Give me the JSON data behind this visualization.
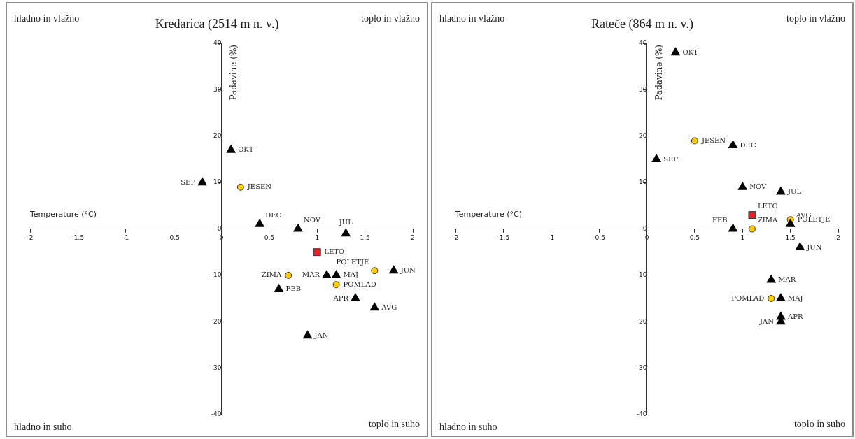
{
  "chart_data": [
    {
      "type": "scatter",
      "title": "Kredarica (2514 m n. v.)",
      "xlabel": "Temperature (°C)",
      "ylabel": "Padavine (%)",
      "grid": false,
      "legend": false,
      "xlim": [
        -2,
        2
      ],
      "xticks": [
        -2,
        {
          "value": -1.5,
          "label": "-1,5"
        },
        -1,
        {
          "value": -0.5,
          "label": "-0,5"
        },
        0,
        {
          "value": 0.5,
          "label": "0,5"
        },
        1,
        {
          "value": 1.5,
          "label": "1,5"
        },
        2
      ],
      "ylim": [
        -40,
        40
      ],
      "yticks": [
        -40,
        -30,
        -20,
        -10,
        0,
        10,
        20,
        30,
        40
      ],
      "series": [
        {
          "type": "scatter",
          "marker": "triangle",
          "color": "#000000",
          "x": [
            0.1,
            -0.2,
            0.4,
            0.8,
            1.3,
            1.1,
            1.2,
            1.8,
            0.6,
            1.4,
            1.6,
            0.9
          ],
          "values": [
            17,
            10,
            1,
            0,
            -1,
            -10,
            -10,
            -9,
            -13,
            -15,
            -17,
            -23
          ]
        },
        {
          "type": "scatter",
          "marker": "circle",
          "color": "#ffcc00",
          "x": [
            0.2,
            0.7,
            1.2,
            1.6
          ],
          "values": [
            9,
            -10,
            -12,
            -9
          ]
        },
        {
          "type": "scatter",
          "marker": "square",
          "color": "#e8202a",
          "x": [
            1
          ],
          "values": [
            -5
          ]
        }
      ],
      "annotations": [
        "hladno in vlažno",
        "toplo in vlažno",
        "hladno in suho",
        "toplo in suho",
        {
          "text": "OKT",
          "x": 0.1,
          "y": 17
        },
        {
          "text": "SEP",
          "x": -0.2,
          "y": 10
        },
        {
          "text": "DEC",
          "x": 0.4,
          "y": 1
        },
        {
          "text": "NOV",
          "x": 0.8,
          "y": 0
        },
        {
          "text": "JUL",
          "x": 1.3,
          "y": -1
        },
        {
          "text": "MAR",
          "x": 1.1,
          "y": -10
        },
        {
          "text": "MAJ",
          "x": 1.2,
          "y": -10
        },
        {
          "text": "JUN",
          "x": 1.8,
          "y": -9
        },
        {
          "text": "FEB",
          "x": 0.6,
          "y": -13
        },
        {
          "text": "APR",
          "x": 1.4,
          "y": -15
        },
        {
          "text": "AVG",
          "x": 1.6,
          "y": -17
        },
        {
          "text": "JAN",
          "x": 0.9,
          "y": -23
        },
        {
          "text": "JESEN",
          "x": 0.2,
          "y": 9
        },
        {
          "text": "ZIMA",
          "x": 0.7,
          "y": -10
        },
        {
          "text": "POMLAD",
          "x": 1.2,
          "y": -12
        },
        {
          "text": "POLETJE",
          "x": 1.6,
          "y": -9
        },
        {
          "text": "LETO",
          "x": 1,
          "y": -5
        }
      ]
    },
    {
      "type": "scatter",
      "title": "Rateče (864 m n. v.)",
      "xlabel": "Temperature (°C)",
      "ylabel": "Padavine (%)",
      "grid": false,
      "legend": false,
      "xlim": [
        -2,
        2
      ],
      "xticks": [
        -2,
        {
          "value": -1.5,
          "label": "-1,5"
        },
        -1,
        {
          "value": -0.5,
          "label": "-0,5"
        },
        0,
        {
          "value": 0.5,
          "label": "0,5"
        },
        1,
        {
          "value": 1.5,
          "label": "1,5"
        },
        2
      ],
      "ylim": [
        -40,
        40
      ],
      "yticks": [
        -40,
        -30,
        -20,
        -10,
        0,
        10,
        20,
        30,
        40
      ],
      "series": [
        {
          "type": "scatter",
          "marker": "triangle",
          "color": "#000000",
          "x": [
            0.3,
            0.9,
            0.1,
            1,
            1.4,
            1.5,
            0.9,
            1.6,
            1.3,
            1.4,
            1.4,
            1.4
          ],
          "values": [
            38,
            18,
            15,
            9,
            8,
            1,
            0,
            -4,
            -11,
            -15,
            -19,
            -20
          ]
        },
        {
          "type": "scatter",
          "marker": "circle",
          "color": "#ffcc00",
          "x": [
            0.5,
            1.5,
            1.1,
            1.3
          ],
          "values": [
            19,
            2,
            0,
            -15
          ]
        },
        {
          "type": "scatter",
          "marker": "square",
          "color": "#e8202a",
          "x": [
            1.1
          ],
          "values": [
            3
          ]
        }
      ],
      "annotations": [
        "hladno in vlažno",
        "toplo in vlažno",
        "hladno in suho",
        "toplo in suho",
        {
          "text": "OKT",
          "x": 0.3,
          "y": 38
        },
        {
          "text": "DEC",
          "x": 0.9,
          "y": 18
        },
        {
          "text": "SEP",
          "x": 0.1,
          "y": 15
        },
        {
          "text": "NOV",
          "x": 1,
          "y": 9
        },
        {
          "text": "JUL",
          "x": 1.4,
          "y": 8
        },
        {
          "text": "AVG",
          "x": 1.5,
          "y": 1
        },
        {
          "text": "FEB",
          "x": 0.9,
          "y": 0
        },
        {
          "text": "JUN",
          "x": 1.6,
          "y": -4
        },
        {
          "text": "MAR",
          "x": 1.3,
          "y": -11
        },
        {
          "text": "MAJ",
          "x": 1.4,
          "y": -15
        },
        {
          "text": "APR",
          "x": 1.4,
          "y": -19
        },
        {
          "text": "JAN",
          "x": 1.4,
          "y": -20
        },
        {
          "text": "JESEN",
          "x": 0.5,
          "y": 19
        },
        {
          "text": "POLETJE",
          "x": 1.5,
          "y": 2
        },
        {
          "text": "ZIMA",
          "x": 1.1,
          "y": 0
        },
        {
          "text": "POMLAD",
          "x": 1.3,
          "y": -15
        },
        {
          "text": "LETO",
          "x": 1.1,
          "y": 3
        }
      ]
    }
  ]
}
